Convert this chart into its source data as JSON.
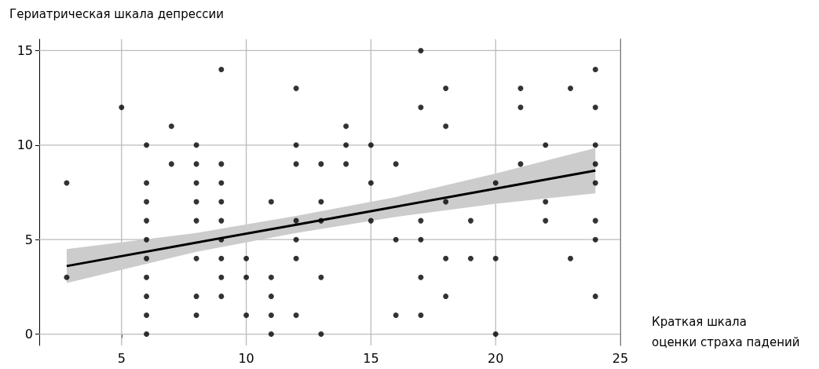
{
  "chart_data": {
    "type": "scatter",
    "ylabel": "Гериатрическая шкала депрессии",
    "xlabel": "Краткая шкала\nоценки страха падений",
    "xlim": [
      1.7,
      25
    ],
    "xticks": [
      5,
      10,
      15,
      20,
      25
    ],
    "ylim": [
      -0.6,
      15.6
    ],
    "yticks": [
      0,
      5,
      10,
      15
    ],
    "grid": true,
    "marker": "circle",
    "series": [
      {
        "color": "#000000",
        "x": [
          2.8,
          2.8,
          5,
          6,
          6,
          6,
          6,
          6,
          6,
          6,
          6,
          6,
          6,
          7,
          7,
          8,
          8,
          8,
          8,
          8,
          8,
          8,
          8,
          9,
          9,
          9,
          9,
          9,
          9,
          9,
          9,
          9,
          10,
          10,
          10,
          11,
          11,
          11,
          11,
          11,
          12,
          12,
          12,
          12,
          12,
          12,
          12,
          13,
          13,
          13,
          13,
          13,
          14,
          14,
          14,
          15,
          15,
          15,
          16,
          16,
          16,
          17,
          17,
          17,
          17,
          17,
          17,
          18,
          18,
          18,
          18,
          18,
          19,
          19,
          20,
          20,
          20,
          21,
          21,
          21,
          22,
          22,
          22,
          23,
          23,
          24,
          24,
          24,
          24,
          24,
          24,
          24,
          24
        ],
        "values": [
          8,
          3,
          12,
          10,
          8,
          7,
          6,
          5,
          4,
          3,
          2,
          1,
          0,
          11,
          9,
          10,
          9,
          8,
          7,
          6,
          4,
          2,
          1,
          14,
          9,
          8,
          7,
          6,
          5,
          4,
          3,
          2,
          4,
          3,
          1,
          7,
          3,
          2,
          1,
          0,
          13,
          10,
          9,
          6,
          5,
          4,
          1,
          9,
          7,
          6,
          3,
          0,
          11,
          10,
          9,
          10,
          8,
          6,
          9,
          5,
          1,
          15,
          12,
          6,
          5,
          3,
          1,
          13,
          11,
          7,
          4,
          2,
          6,
          4,
          8,
          4,
          0,
          13,
          12,
          9,
          10,
          7,
          6,
          13,
          4,
          14,
          12,
          10,
          9,
          8,
          6,
          5,
          2
        ]
      },
      {
        "type": "line",
        "color": "#000000",
        "marker": "none",
        "x": [
          2.8,
          8,
          12,
          16,
          20,
          24
        ],
        "values": [
          3.6,
          4.84,
          5.79,
          6.74,
          7.7,
          8.65
        ],
        "lower": [
          2.7,
          4.35,
          5.35,
          6.2,
          6.9,
          7.45
        ],
        "upper": [
          4.5,
          5.35,
          6.25,
          7.25,
          8.5,
          9.85
        ]
      }
    ]
  }
}
